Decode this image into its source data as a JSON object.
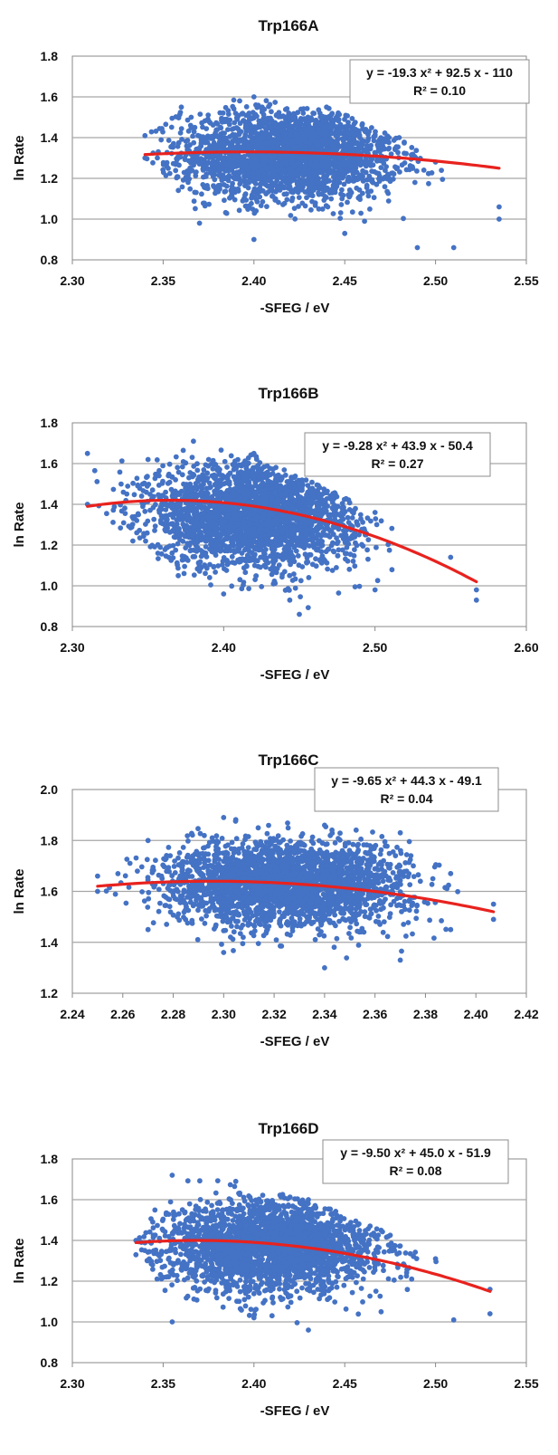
{
  "colors": {
    "points": "#4472c4",
    "fit": "#e8221e",
    "grid": "#a6a6a6",
    "frame": "#888888"
  },
  "chart_data": [
    {
      "type": "scatter",
      "title": "Trp166A",
      "xlabel": "-SFEG / eV",
      "ylabel": "ln Rate",
      "xlim": [
        2.3,
        2.55
      ],
      "ylim": [
        0.8,
        1.8
      ],
      "xticks": [
        "2.30",
        "2.35",
        "2.40",
        "2.45",
        "2.50",
        "2.55"
      ],
      "yticks": [
        "0.8",
        "1.0",
        "1.2",
        "1.4",
        "1.6",
        "1.8"
      ],
      "grid": "horizontal",
      "points": {
        "center": [
          2.42,
          1.32
        ],
        "spread": [
          0.03,
          0.11
        ],
        "count": 2600,
        "x_range": [
          2.34,
          2.535
        ],
        "y_range": [
          0.86,
          1.6
        ],
        "upper_edge": [
          [
            2.34,
            1.41
          ],
          [
            2.36,
            1.55
          ],
          [
            2.4,
            1.6
          ],
          [
            2.44,
            1.55
          ],
          [
            2.48,
            1.4
          ],
          [
            2.5,
            1.28
          ],
          [
            2.535,
            1.06
          ]
        ],
        "lower_edge": [
          [
            2.34,
            1.3
          ],
          [
            2.37,
            0.98
          ],
          [
            2.4,
            0.9
          ],
          [
            2.45,
            0.93
          ],
          [
            2.49,
            0.86
          ],
          [
            2.51,
            0.86
          ],
          [
            2.535,
            1.0
          ]
        ]
      },
      "fit": {
        "a": -19.3,
        "b": 92.5,
        "c": -110,
        "x_range": [
          2.34,
          2.535
        ],
        "ymin": 1.25,
        "ymax": 1.33
      },
      "equation": "y = -19.3 x² + 92.5 x - 110",
      "r_squared": "R² = 0.10",
      "legend": "top-right"
    },
    {
      "type": "scatter",
      "title": "Trp166B",
      "xlabel": "-SFEG / eV",
      "ylabel": "ln Rate",
      "xlim": [
        2.3,
        2.6
      ],
      "ylim": [
        0.8,
        1.8
      ],
      "xticks": [
        "2.30",
        "2.40",
        "2.50",
        "2.60"
      ],
      "yticks": [
        "0.8",
        "1.0",
        "1.2",
        "1.4",
        "1.6",
        "1.8"
      ],
      "grid": "horizontal",
      "points": {
        "center": [
          2.42,
          1.35
        ],
        "spread": [
          0.035,
          0.13
        ],
        "count": 2600,
        "x_range": [
          2.31,
          2.567
        ],
        "y_range": [
          0.86,
          1.71
        ],
        "upper_edge": [
          [
            2.31,
            1.65
          ],
          [
            2.35,
            1.62
          ],
          [
            2.38,
            1.71
          ],
          [
            2.42,
            1.65
          ],
          [
            2.5,
            1.36
          ],
          [
            2.55,
            1.14
          ],
          [
            2.567,
            0.98
          ]
        ],
        "lower_edge": [
          [
            2.31,
            1.4
          ],
          [
            2.34,
            1.22
          ],
          [
            2.37,
            1.05
          ],
          [
            2.4,
            0.96
          ],
          [
            2.45,
            0.86
          ],
          [
            2.5,
            0.98
          ],
          [
            2.567,
            0.93
          ]
        ]
      },
      "fit": {
        "a": -9.28,
        "b": 43.9,
        "c": -50.4,
        "x_range": [
          2.31,
          2.567
        ],
        "ymin": 1.02,
        "ymax": 1.42
      },
      "equation": "y = -9.28 x² + 43.9 x - 50.4",
      "r_squared": "R² = 0.27",
      "legend": "top-right"
    },
    {
      "type": "scatter",
      "title": "Trp166C",
      "xlabel": "-SFEG / eV",
      "ylabel": "ln Rate",
      "xlim": [
        2.24,
        2.42
      ],
      "ylim": [
        1.2,
        2.0
      ],
      "xticks": [
        "2.24",
        "2.26",
        "2.28",
        "2.30",
        "2.32",
        "2.34",
        "2.36",
        "2.38",
        "2.40",
        "2.42"
      ],
      "yticks": [
        "1.2",
        "1.4",
        "1.6",
        "1.8",
        "2.0"
      ],
      "grid": "horizontal",
      "points": {
        "center": [
          2.325,
          1.63
        ],
        "spread": [
          0.024,
          0.085
        ],
        "count": 2600,
        "x_range": [
          2.25,
          2.407
        ],
        "y_range": [
          1.3,
          1.89
        ],
        "upper_edge": [
          [
            2.25,
            1.66
          ],
          [
            2.27,
            1.8
          ],
          [
            2.3,
            1.89
          ],
          [
            2.34,
            1.86
          ],
          [
            2.37,
            1.83
          ],
          [
            2.39,
            1.67
          ],
          [
            2.407,
            1.55
          ]
        ],
        "lower_edge": [
          [
            2.25,
            1.6
          ],
          [
            2.27,
            1.45
          ],
          [
            2.3,
            1.36
          ],
          [
            2.34,
            1.3
          ],
          [
            2.37,
            1.33
          ],
          [
            2.39,
            1.45
          ],
          [
            2.407,
            1.49
          ]
        ]
      },
      "fit": {
        "a": -9.65,
        "b": 44.3,
        "c": -49.1,
        "x_range": [
          2.25,
          2.407
        ],
        "ymin": 1.52,
        "ymax": 1.64
      },
      "equation": "y = -9.65 x² + 44.3 x - 49.1",
      "r_squared": "R² = 0.04",
      "legend": "top-right"
    },
    {
      "type": "scatter",
      "title": "Trp166D",
      "xlabel": "-SFEG / eV",
      "ylabel": "ln Rate",
      "xlim": [
        2.3,
        2.55
      ],
      "ylim": [
        0.8,
        1.8
      ],
      "xticks": [
        "2.30",
        "2.35",
        "2.40",
        "2.45",
        "2.50",
        "2.55"
      ],
      "yticks": [
        "0.8",
        "1.0",
        "1.2",
        "1.4",
        "1.6",
        "1.8"
      ],
      "grid": "horizontal",
      "points": {
        "center": [
          2.41,
          1.37
        ],
        "spread": [
          0.03,
          0.11
        ],
        "count": 2600,
        "x_range": [
          2.335,
          2.53
        ],
        "y_range": [
          0.96,
          1.72
        ],
        "upper_edge": [
          [
            2.335,
            1.4
          ],
          [
            2.355,
            1.72
          ],
          [
            2.39,
            1.69
          ],
          [
            2.43,
            1.6
          ],
          [
            2.47,
            1.45
          ],
          [
            2.5,
            1.31
          ],
          [
            2.53,
            1.16
          ]
        ],
        "lower_edge": [
          [
            2.335,
            1.33
          ],
          [
            2.355,
            1.0
          ],
          [
            2.4,
            1.02
          ],
          [
            2.43,
            0.96
          ],
          [
            2.47,
            1.05
          ],
          [
            2.51,
            1.01
          ],
          [
            2.53,
            1.04
          ]
        ]
      },
      "fit": {
        "a": -9.5,
        "b": 45.0,
        "c": -51.9,
        "x_range": [
          2.335,
          2.53
        ],
        "ymin": 1.15,
        "ymax": 1.4
      },
      "equation": "y = -9.50 x² + 45.0 x - 51.9",
      "r_squared": "R² = 0.08",
      "legend": "top-right"
    }
  ]
}
